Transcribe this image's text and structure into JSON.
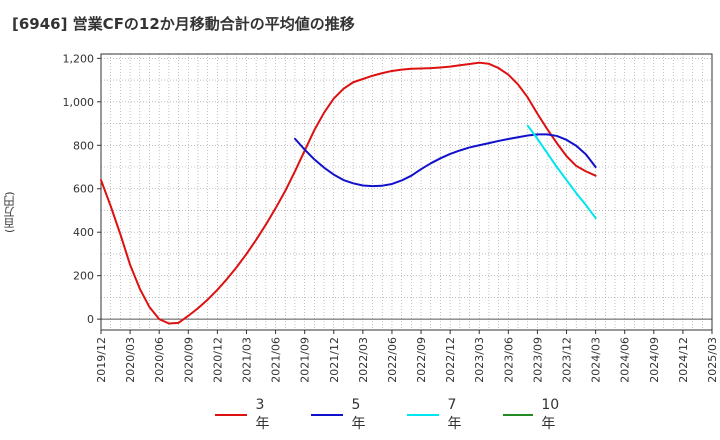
{
  "title": "[6946]  営業CFの12か月移動合計の平均値の推移",
  "chart_data": {
    "type": "line",
    "ylabel": "(百万円)",
    "xlabel": "",
    "ylim": [
      -50,
      1220
    ],
    "yticks": [
      0,
      200,
      400,
      600,
      800,
      1000,
      1200
    ],
    "ytick_labels": [
      "0",
      "200",
      "400",
      "600",
      "800",
      "1,000",
      "1,200"
    ],
    "xlim": [
      "2019/12",
      "2025/03"
    ],
    "xticks": [
      "2019/12",
      "2020/03",
      "2020/06",
      "2020/09",
      "2020/12",
      "2021/03",
      "2021/06",
      "2021/09",
      "2021/12",
      "2022/03",
      "2022/06",
      "2022/09",
      "2022/12",
      "2023/03",
      "2023/06",
      "2023/09",
      "2023/12",
      "2024/03",
      "2024/06",
      "2024/09",
      "2024/12",
      "2025/03"
    ],
    "grid": true,
    "legend_position": "bottom",
    "series": [
      {
        "name": "3年",
        "color": "#dd1111",
        "points": [
          [
            "2019/12",
            640
          ],
          [
            "2020/01",
            520
          ],
          [
            "2020/02",
            390
          ],
          [
            "2020/03",
            250
          ],
          [
            "2020/04",
            140
          ],
          [
            "2020/05",
            55
          ],
          [
            "2020/06",
            0
          ],
          [
            "2020/07",
            -20
          ],
          [
            "2020/08",
            -17
          ],
          [
            "2020/09",
            15
          ],
          [
            "2020/10",
            50
          ],
          [
            "2020/11",
            90
          ],
          [
            "2020/12",
            135
          ],
          [
            "2021/01",
            185
          ],
          [
            "2021/02",
            240
          ],
          [
            "2021/03",
            300
          ],
          [
            "2021/04",
            365
          ],
          [
            "2021/05",
            435
          ],
          [
            "2021/06",
            510
          ],
          [
            "2021/07",
            590
          ],
          [
            "2021/08",
            680
          ],
          [
            "2021/09",
            775
          ],
          [
            "2021/10",
            870
          ],
          [
            "2021/11",
            950
          ],
          [
            "2021/12",
            1015
          ],
          [
            "2022/01",
            1060
          ],
          [
            "2022/02",
            1090
          ],
          [
            "2022/03",
            1105
          ],
          [
            "2022/04",
            1120
          ],
          [
            "2022/05",
            1132
          ],
          [
            "2022/06",
            1142
          ],
          [
            "2022/07",
            1148
          ],
          [
            "2022/08",
            1152
          ],
          [
            "2022/09",
            1153
          ],
          [
            "2022/10",
            1155
          ],
          [
            "2022/11",
            1158
          ],
          [
            "2022/12",
            1162
          ],
          [
            "2023/01",
            1168
          ],
          [
            "2023/02",
            1174
          ],
          [
            "2023/03",
            1180
          ],
          [
            "2023/04",
            1175
          ],
          [
            "2023/05",
            1155
          ],
          [
            "2023/06",
            1125
          ],
          [
            "2023/07",
            1080
          ],
          [
            "2023/08",
            1020
          ],
          [
            "2023/09",
            945
          ],
          [
            "2023/10",
            875
          ],
          [
            "2023/11",
            810
          ],
          [
            "2023/12",
            750
          ],
          [
            "2024/01",
            705
          ],
          [
            "2024/02",
            680
          ],
          [
            "2024/03",
            660
          ]
        ]
      },
      {
        "name": "5年",
        "color": "#1111cc",
        "points": [
          [
            "2021/08",
            830
          ],
          [
            "2021/09",
            780
          ],
          [
            "2021/10",
            735
          ],
          [
            "2021/11",
            697
          ],
          [
            "2021/12",
            665
          ],
          [
            "2022/01",
            640
          ],
          [
            "2022/02",
            625
          ],
          [
            "2022/03",
            615
          ],
          [
            "2022/04",
            612
          ],
          [
            "2022/05",
            614
          ],
          [
            "2022/06",
            622
          ],
          [
            "2022/07",
            638
          ],
          [
            "2022/08",
            660
          ],
          [
            "2022/09",
            690
          ],
          [
            "2022/10",
            717
          ],
          [
            "2022/11",
            740
          ],
          [
            "2022/12",
            760
          ],
          [
            "2023/01",
            776
          ],
          [
            "2023/02",
            790
          ],
          [
            "2023/03",
            800
          ],
          [
            "2023/04",
            810
          ],
          [
            "2023/05",
            820
          ],
          [
            "2023/06",
            829
          ],
          [
            "2023/07",
            837
          ],
          [
            "2023/08",
            845
          ],
          [
            "2023/09",
            850
          ],
          [
            "2023/10",
            850
          ],
          [
            "2023/11",
            843
          ],
          [
            "2023/12",
            825
          ],
          [
            "2024/01",
            798
          ],
          [
            "2024/02",
            758
          ],
          [
            "2024/03",
            700
          ]
        ]
      },
      {
        "name": "7年",
        "color": "#00e5ee",
        "points": [
          [
            "2023/08",
            890
          ],
          [
            "2023/09",
            830
          ],
          [
            "2023/10",
            765
          ],
          [
            "2023/11",
            700
          ],
          [
            "2023/12",
            640
          ],
          [
            "2024/01",
            580
          ],
          [
            "2024/02",
            525
          ],
          [
            "2024/03",
            465
          ]
        ]
      },
      {
        "name": "10年",
        "color": "#228b22",
        "points": []
      }
    ]
  }
}
